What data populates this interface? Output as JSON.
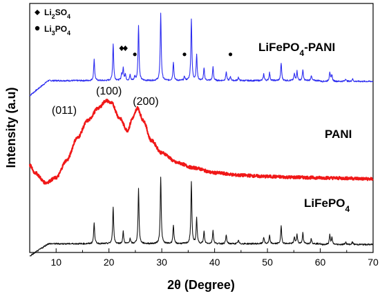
{
  "chart_data": {
    "type": "line",
    "xlabel": "2θ (Degree)",
    "ylabel": "Intensity (a.u)",
    "xlim": [
      5,
      70
    ],
    "xticks": [
      10,
      20,
      30,
      40,
      50,
      60,
      70
    ],
    "grid": false,
    "legend": [
      {
        "symbol": "diamond",
        "base": "Li",
        "sub1": "2",
        "mid": "SO",
        "sub2": "4"
      },
      {
        "symbol": "circle",
        "base": "Li",
        "sub1": "3",
        "mid": "PO",
        "sub2": "4"
      }
    ],
    "peak_labels": [
      {
        "text": "(011)",
        "x": 15.2
      },
      {
        "text": "(100)",
        "x": 20.0
      },
      {
        "text": "(200)",
        "x": 25.4
      }
    ],
    "lfp_peaks": [
      [
        17.2,
        0.32
      ],
      [
        20.8,
        0.55
      ],
      [
        22.7,
        0.18
      ],
      [
        24.0,
        0.08
      ],
      [
        25.6,
        0.82
      ],
      [
        29.8,
        1.0
      ],
      [
        32.2,
        0.28
      ],
      [
        35.6,
        0.92
      ],
      [
        36.6,
        0.38
      ],
      [
        38.0,
        0.18
      ],
      [
        39.7,
        0.2
      ],
      [
        42.2,
        0.13
      ],
      [
        44.5,
        0.05
      ],
      [
        49.3,
        0.1
      ],
      [
        50.4,
        0.12
      ],
      [
        52.6,
        0.26
      ],
      [
        55.1,
        0.1
      ],
      [
        55.6,
        0.14
      ],
      [
        56.7,
        0.16
      ],
      [
        58.3,
        0.08
      ],
      [
        61.8,
        0.14
      ],
      [
        62.2,
        0.1
      ],
      [
        64.8,
        0.04
      ],
      [
        66.1,
        0.04
      ]
    ],
    "impurity_peaks": {
      "Li2SO4": [
        22.4,
        23.1
      ],
      "Li3PO4": [
        24.9,
        34.3,
        43.0
      ]
    },
    "series": [
      {
        "name": "LiFePO4-PANI",
        "color": "#2b2bf0",
        "offset": 0.69,
        "amplitude": 0.27
      },
      {
        "name": "PANI",
        "color": "#f01818",
        "offset": 0.35,
        "amplitude": 0.0
      },
      {
        "name": "LiFePO4",
        "color": "#111111",
        "offset": 0.035,
        "amplitude": 0.27
      }
    ],
    "pani_profile": [
      [
        5,
        0.0
      ],
      [
        6,
        -0.03
      ],
      [
        8,
        -0.07
      ],
      [
        10,
        -0.05
      ],
      [
        12,
        0.02
      ],
      [
        14,
        0.11
      ],
      [
        16,
        0.18
      ],
      [
        18,
        0.23
      ],
      [
        19.5,
        0.26
      ],
      [
        20.5,
        0.25
      ],
      [
        22,
        0.19
      ],
      [
        23.5,
        0.14
      ],
      [
        24.5,
        0.19
      ],
      [
        25.4,
        0.23
      ],
      [
        26.5,
        0.18
      ],
      [
        28,
        0.1
      ],
      [
        30,
        0.05
      ],
      [
        33,
        0.01
      ],
      [
        36,
        -0.01
      ],
      [
        40,
        -0.03
      ],
      [
        45,
        -0.04
      ],
      [
        50,
        -0.045
      ],
      [
        55,
        -0.048
      ],
      [
        60,
        -0.05
      ],
      [
        65,
        -0.052
      ],
      [
        70,
        -0.055
      ]
    ],
    "series_labels": {
      "composite": {
        "base": "LiFePO",
        "sub": "4",
        "suffix": "-PANI"
      },
      "pani": "PANI",
      "lfp": {
        "base": "LiFePO",
        "sub": "4"
      }
    }
  }
}
